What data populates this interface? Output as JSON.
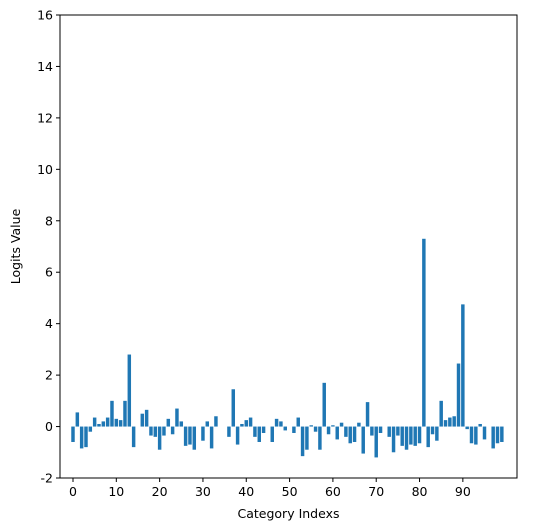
{
  "chart_data": {
    "type": "bar",
    "xlabel": "Category Indexs",
    "ylabel": "Logits Value",
    "ylim": [
      -2,
      16
    ],
    "xlim": [
      -3,
      102.5
    ],
    "grid": false,
    "bar_color": "#1f77b4",
    "xticks": [
      0,
      10,
      20,
      30,
      40,
      50,
      60,
      70,
      80,
      90
    ],
    "yticks": [
      -2,
      0,
      2,
      4,
      6,
      8,
      10,
      12,
      14,
      16
    ],
    "x": [
      0,
      1,
      2,
      3,
      4,
      5,
      6,
      7,
      8,
      9,
      10,
      11,
      12,
      13,
      14,
      15,
      16,
      17,
      18,
      19,
      20,
      21,
      22,
      23,
      24,
      25,
      26,
      27,
      28,
      29,
      30,
      31,
      32,
      33,
      34,
      35,
      36,
      37,
      38,
      39,
      40,
      41,
      42,
      43,
      44,
      45,
      46,
      47,
      48,
      49,
      50,
      51,
      52,
      53,
      54,
      55,
      56,
      57,
      58,
      59,
      60,
      61,
      62,
      63,
      64,
      65,
      66,
      67,
      68,
      69,
      70,
      71,
      72,
      73,
      74,
      75,
      76,
      77,
      78,
      79,
      80,
      81,
      82,
      83,
      84,
      85,
      86,
      87,
      88,
      89,
      90,
      91,
      92,
      93,
      94,
      95,
      96,
      97,
      98,
      99
    ],
    "values": [
      -0.6,
      0.55,
      -0.85,
      -0.8,
      -0.2,
      0.35,
      0.1,
      0.2,
      0.35,
      1.0,
      0.3,
      0.25,
      1.0,
      2.8,
      -0.8,
      0.0,
      0.5,
      0.65,
      -0.35,
      -0.4,
      -0.9,
      -0.35,
      0.3,
      -0.3,
      0.7,
      0.2,
      -0.75,
      -0.7,
      -0.9,
      0.0,
      -0.55,
      0.2,
      -0.85,
      0.4,
      0.0,
      0.0,
      -0.4,
      1.45,
      -0.7,
      0.1,
      0.25,
      0.35,
      -0.4,
      -0.6,
      -0.25,
      0.0,
      -0.6,
      0.3,
      0.2,
      -0.15,
      0.0,
      -0.25,
      0.35,
      -1.15,
      -0.9,
      0.05,
      -0.2,
      -0.9,
      1.7,
      -0.3,
      0.05,
      -0.5,
      0.15,
      -0.4,
      -0.65,
      -0.6,
      0.15,
      -1.05,
      0.95,
      -0.35,
      -1.2,
      -0.25,
      0.0,
      -0.4,
      -1.0,
      -0.35,
      -0.75,
      -0.9,
      -0.7,
      -0.75,
      -0.65,
      7.3,
      -0.8,
      -0.3,
      -0.55,
      1.0,
      0.25,
      0.35,
      0.4,
      2.45,
      4.75,
      -0.1,
      -0.65,
      -0.7,
      0.1,
      -0.5,
      0.0,
      -0.85,
      -0.65,
      -0.6
    ]
  }
}
